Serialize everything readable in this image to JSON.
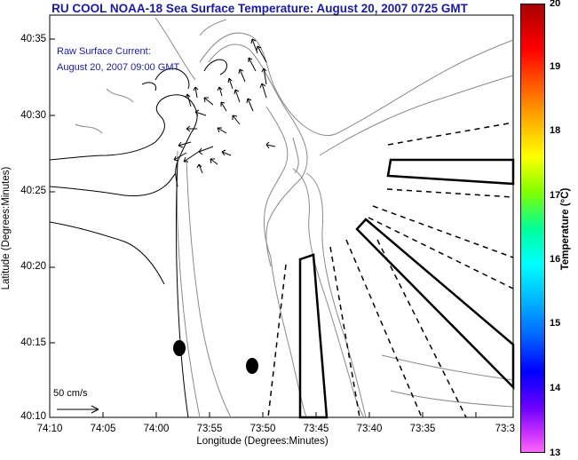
{
  "title": "RU COOL  NOAA-18  Sea Surface Temperature:  August 20, 2007 0725 GMT",
  "legend": {
    "line1": "Raw Surface Current:",
    "line2": "August 20, 2007 09:00 GMT"
  },
  "scale_label": "50 cm/s",
  "axes": {
    "xlabel": "Longitude (Degrees:Minutes)",
    "ylabel": "Latitude (Degrees:Minutes)",
    "x_ticks": [
      "74:10",
      "74:05",
      "74:00",
      "73:55",
      "73:50",
      "73:45",
      "73:40",
      "73:35",
      "73:3"
    ],
    "y_ticks": [
      "40:35",
      "40:30",
      "40:25",
      "40:20",
      "40:15",
      "40:10"
    ]
  },
  "colorbar": {
    "title": "Temperature (°C)",
    "ticks": [
      "20",
      "19",
      "18",
      "17",
      "16",
      "15",
      "14",
      "13"
    ],
    "colors": [
      "#ff66ff",
      "#6a00ff",
      "#0000ff",
      "#00ffff",
      "#7fff00",
      "#ffff00",
      "#ff0000",
      "#a80000"
    ]
  }
}
